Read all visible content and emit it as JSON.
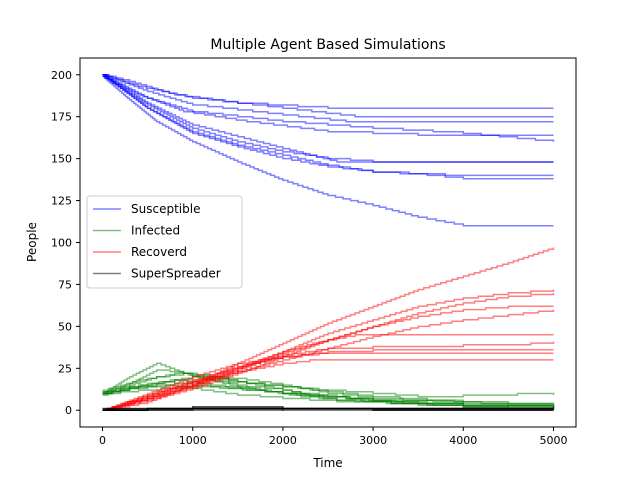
{
  "chart_data": {
    "type": "line",
    "title": "Multiple Agent Based Simulations",
    "xlabel": "Time",
    "ylabel": "People",
    "xlim": [
      -250,
      5250
    ],
    "ylim": [
      -10,
      210
    ],
    "xticks": [
      0,
      1000,
      2000,
      3000,
      4000,
      5000
    ],
    "yticks": [
      0,
      25,
      50,
      75,
      100,
      125,
      150,
      175,
      200
    ],
    "grid": false,
    "legend_position": "center-left",
    "legend": [
      {
        "name": "Susceptible",
        "color": "#0000ff"
      },
      {
        "name": "Infected",
        "color": "#008000"
      },
      {
        "name": "Recoverd",
        "color": "#ff0000"
      },
      {
        "name": "SuperSpreader",
        "color": "#000000"
      }
    ],
    "series": [
      {
        "name": "Susceptible",
        "color": "#0000ff",
        "runs": [
          {
            "x": [
              0,
              300,
              800,
              1500,
              2500,
              3000,
              5000
            ],
            "y": [
              200,
              196,
              188,
              183,
              180,
              180,
              180
            ]
          },
          {
            "x": [
              0,
              400,
              1000,
              2000,
              2800,
              5000
            ],
            "y": [
              200,
              193,
              186,
              180,
              175,
              175
            ]
          },
          {
            "x": [
              0,
              500,
              1000,
              2000,
              2700,
              5000
            ],
            "y": [
              200,
              190,
              182,
              176,
              172,
              172
            ]
          },
          {
            "x": [
              0,
              400,
              900,
              1600,
              2500,
              3500,
              5000
            ],
            "y": [
              199,
              188,
              178,
              172,
              166,
              164,
              164
            ]
          },
          {
            "x": [
              0,
              500,
              1000,
              2000,
              3000,
              4000,
              4600,
              5000
            ],
            "y": [
              200,
              186,
              178,
              172,
              168,
              165,
              162,
              160
            ]
          },
          {
            "x": [
              0,
              500,
              1000,
              1500,
              2000,
              2600,
              5000
            ],
            "y": [
              200,
              183,
              170,
              163,
              156,
              148,
              148
            ]
          },
          {
            "x": [
              0,
              500,
              1000,
              1500,
              2000,
              2500,
              3000,
              5000
            ],
            "y": [
              199,
              182,
              168,
              160,
              154,
              150,
              148,
              148
            ]
          },
          {
            "x": [
              0,
              500,
              1000,
              1500,
              2000,
              2500,
              3000,
              3800,
              5000
            ],
            "y": [
              200,
              180,
              166,
              158,
              152,
              146,
              142,
              140,
              140
            ]
          },
          {
            "x": [
              0,
              500,
              1000,
              1500,
              2000,
              2500,
              3000,
              3600,
              4000,
              5000
            ],
            "y": [
              200,
              180,
              165,
              157,
              150,
              145,
              142,
              140,
              138,
              138
            ]
          },
          {
            "x": [
              0,
              300,
              600,
              1000,
              1500,
              2000,
              2500,
              3000,
              3500,
              4000,
              5000
            ],
            "y": [
              199,
              185,
              172,
              160,
              148,
              137,
              128,
              122,
              115,
              110,
              110
            ]
          }
        ]
      },
      {
        "name": "Infected",
        "color": "#008000",
        "runs": [
          {
            "x": [
              0,
              300,
              600,
              900,
              1200,
              1600,
              2000,
              2400,
              3000,
              4000,
              5000
            ],
            "y": [
              10,
              16,
              24,
              22,
              18,
              14,
              12,
              8,
              6,
              5,
              3
            ]
          },
          {
            "x": [
              0,
              300,
              600,
              900,
              1200,
              1600,
              2000,
              2500,
              3000,
              4000,
              5000
            ],
            "y": [
              11,
              15,
              20,
              22,
              20,
              18,
              15,
              10,
              7,
              4,
              2
            ]
          },
          {
            "x": [
              0,
              400,
              800,
              1200,
              1600,
              2000,
              2400,
              3000,
              3500,
              4000,
              4600,
              5000
            ],
            "y": [
              12,
              18,
              22,
              20,
              16,
              14,
              12,
              10,
              8,
              9,
              10,
              9
            ]
          },
          {
            "x": [
              0,
              300,
              600,
              1000,
              1500,
              2000,
              2600,
              3200,
              4000,
              5000
            ],
            "y": [
              10,
              20,
              28,
              20,
              14,
              10,
              6,
              4,
              3,
              2
            ]
          },
          {
            "x": [
              0,
              400,
              800,
              1200,
              1600,
              2000,
              2500,
              3000,
              3600,
              4200,
              5000
            ],
            "y": [
              10,
              14,
              18,
              18,
              16,
              14,
              11,
              8,
              6,
              4,
              4
            ]
          },
          {
            "x": [
              0,
              500,
              1000,
              1400,
              1800,
              2200,
              2600,
              3000,
              4000,
              5000
            ],
            "y": [
              11,
              16,
              20,
              18,
              14,
              10,
              8,
              5,
              2,
              1
            ]
          },
          {
            "x": [
              0,
              400,
              800,
              1200,
              1600,
              2000,
              2500,
              3000,
              3500,
              4000,
              5000
            ],
            "y": [
              10,
              14,
              16,
              14,
              12,
              10,
              8,
              6,
              4,
              3,
              3
            ]
          },
          {
            "x": [
              0,
              400,
              900,
              1300,
              1800,
              2200,
              2700,
              3200,
              4000,
              5000
            ],
            "y": [
              10,
              12,
              14,
              13,
              11,
              9,
              7,
              5,
              3,
              2
            ]
          },
          {
            "x": [
              0,
              300,
              700,
              1100,
              1500,
              2000,
              2600,
              3200,
              4000,
              5000
            ],
            "y": [
              10,
              13,
              15,
              12,
              9,
              7,
              5,
              4,
              2,
              1
            ]
          },
          {
            "x": [
              0,
              300,
              800,
              1200,
              1700,
              2200,
              2800,
              3500,
              4500,
              5000
            ],
            "y": [
              9,
              14,
              18,
              15,
              12,
              8,
              5,
              3,
              1,
              1
            ]
          }
        ]
      },
      {
        "name": "Recoverd",
        "color": "#ff0000",
        "runs": [
          {
            "x": [
              0,
              500,
              1000,
              1500,
              2000,
              2500,
              3000,
              3500,
              4000,
              4500,
              5000
            ],
            "y": [
              0,
              5,
              15,
              28,
              40,
              52,
              62,
              72,
              80,
              88,
              97
            ]
          },
          {
            "x": [
              0,
              500,
              1000,
              1500,
              2000,
              2500,
              3000,
              3500,
              4000,
              4500,
              5000
            ],
            "y": [
              0,
              7,
              15,
              25,
              35,
              46,
              54,
              62,
              67,
              70,
              72
            ]
          },
          {
            "x": [
              0,
              500,
              1000,
              1500,
              2000,
              2500,
              3000,
              3500,
              4000,
              4500,
              5000
            ],
            "y": [
              0,
              6,
              13,
              22,
              32,
              42,
              50,
              58,
              64,
              68,
              70
            ]
          },
          {
            "x": [
              0,
              500,
              1000,
              1500,
              2000,
              2500,
              3000,
              3500,
              4000,
              4500,
              5000
            ],
            "y": [
              0,
              7,
              14,
              24,
              34,
              42,
              50,
              56,
              60,
              62,
              62
            ]
          },
          {
            "x": [
              0,
              500,
              1000,
              1500,
              2000,
              2500,
              3000,
              3500,
              4000,
              4500,
              5000
            ],
            "y": [
              0,
              7,
              15,
              23,
              30,
              37,
              44,
              50,
              54,
              57,
              60
            ]
          },
          {
            "x": [
              0,
              500,
              1000,
              1500,
              2000,
              2400,
              2800,
              5000
            ],
            "y": [
              0,
              8,
              17,
              26,
              35,
              41,
              45,
              45
            ]
          },
          {
            "x": [
              0,
              500,
              1000,
              1500,
              2000,
              2500,
              3000,
              3500,
              4000,
              4500,
              5000
            ],
            "y": [
              0,
              8,
              16,
              25,
              33,
              37,
              38,
              38,
              39,
              39,
              41
            ]
          },
          {
            "x": [
              0,
              500,
              1000,
              1500,
              2000,
              2500,
              3000,
              5000
            ],
            "y": [
              0,
              9,
              18,
              26,
              32,
              35,
              36,
              36
            ]
          },
          {
            "x": [
              0,
              500,
              1000,
              1500,
              2000,
              2400,
              5000
            ],
            "y": [
              0,
              10,
              20,
              28,
              32,
              34,
              34
            ]
          },
          {
            "x": [
              0,
              500,
              1000,
              1500,
              2000,
              2300,
              5000
            ],
            "y": [
              0,
              9,
              17,
              23,
              28,
              30,
              30
            ]
          }
        ]
      },
      {
        "name": "SuperSpreader",
        "color": "#000000",
        "runs": [
          {
            "x": [
              0,
              500,
              1000,
              2000,
              3000,
              5000
            ],
            "y": [
              0,
              1,
              1,
              1,
              1,
              1
            ]
          },
          {
            "x": [
              0,
              500,
              1000,
              2000,
              3000,
              5000
            ],
            "y": [
              1,
              1,
              1,
              1,
              1,
              1
            ]
          },
          {
            "x": [
              0,
              500,
              1000,
              2000,
              3000,
              5000
            ],
            "y": [
              0,
              1,
              2,
              1,
              1,
              0
            ]
          },
          {
            "x": [
              0,
              500,
              1000,
              2000,
              3000,
              5000
            ],
            "y": [
              0,
              0,
              1,
              1,
              0,
              0
            ]
          },
          {
            "x": [
              0,
              500,
              1000,
              2000,
              3000,
              5000
            ],
            "y": [
              0,
              1,
              1,
              1,
              1,
              2
            ]
          },
          {
            "x": [
              0,
              500,
              1000,
              2000,
              3000,
              5000
            ],
            "y": [
              0,
              1,
              1,
              0,
              0,
              0
            ]
          },
          {
            "x": [
              0,
              500,
              1000,
              2000,
              3000,
              5000
            ],
            "y": [
              1,
              1,
              2,
              1,
              1,
              1
            ]
          },
          {
            "x": [
              0,
              500,
              1000,
              2000,
              3000,
              5000
            ],
            "y": [
              0,
              0,
              0,
              1,
              1,
              1
            ]
          },
          {
            "x": [
              0,
              500,
              1000,
              2000,
              3000,
              5000
            ],
            "y": [
              0,
              1,
              1,
              1,
              0,
              0
            ]
          },
          {
            "x": [
              0,
              500,
              1000,
              2000,
              3000,
              5000
            ],
            "y": [
              1,
              1,
              1,
              1,
              1,
              1
            ]
          }
        ]
      }
    ]
  }
}
